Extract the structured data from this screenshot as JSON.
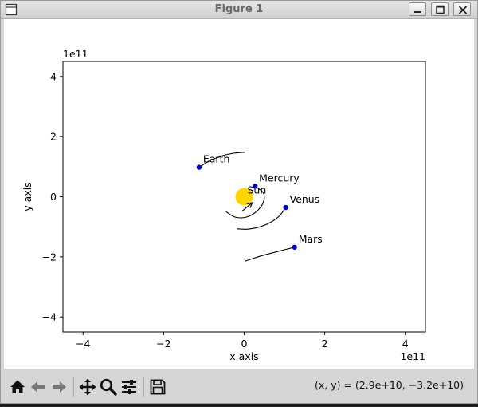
{
  "window": {
    "title": "Figure 1"
  },
  "toolbar": {
    "tools": [
      "home-icon",
      "back-arrow-icon",
      "forward-arrow-icon",
      "pan-move-icon",
      "zoom-magnifier-icon",
      "subplots-sliders-icon",
      "save-floppy-icon"
    ],
    "coordinates": "(x, y) = (2.9e+10, −3.2e+10)"
  },
  "chart_data": {
    "type": "scatter",
    "xlabel": "x axis",
    "ylabel": "y axis",
    "x_offset_text": "1e11",
    "y_offset_text": "1e11",
    "xlim": [
      -4.5,
      4.5
    ],
    "ylim": [
      -4.5,
      4.5
    ],
    "x_ticks": [
      -4,
      -2,
      0,
      2,
      4
    ],
    "y_ticks": [
      -4,
      -2,
      0,
      2,
      4
    ],
    "x_tick_labels": [
      "−4",
      "−2",
      "0",
      "2",
      "4"
    ],
    "y_tick_labels": [
      "−4",
      "−2",
      "0",
      "2",
      "4"
    ],
    "grid": false,
    "sun": {
      "label": "Sun",
      "x": 0.0,
      "y": 0.0,
      "color": "#ffd700"
    },
    "planet_color": "#0000cd",
    "trail_color": "#000000",
    "planets": [
      {
        "label": "Mercury",
        "x": 0.27,
        "y": 0.35,
        "trail": [
          [
            0.27,
            0.35
          ],
          [
            0.48,
            0.12
          ],
          [
            0.47,
            -0.2
          ],
          [
            0.3,
            -0.5
          ],
          [
            0.05,
            -0.68
          ],
          [
            -0.22,
            -0.68
          ],
          [
            -0.45,
            -0.5
          ]
        ]
      },
      {
        "label": "Venus",
        "x": 1.03,
        "y": -0.36,
        "trail": [
          [
            1.03,
            -0.36
          ],
          [
            0.88,
            -0.63
          ],
          [
            0.66,
            -0.85
          ],
          [
            0.4,
            -1.0
          ],
          [
            0.1,
            -1.08
          ],
          [
            -0.18,
            -1.07
          ]
        ]
      },
      {
        "label": "Earth",
        "x": -1.12,
        "y": 0.98,
        "trail": [
          [
            -1.12,
            0.98
          ],
          [
            -0.85,
            1.2
          ],
          [
            -0.55,
            1.36
          ],
          [
            -0.25,
            1.45
          ],
          [
            0.02,
            1.48
          ]
        ]
      },
      {
        "label": "Mars",
        "x": 1.25,
        "y": -1.68,
        "trail": [
          [
            1.25,
            -1.68
          ],
          [
            0.9,
            -1.8
          ],
          [
            0.55,
            -1.92
          ],
          [
            0.25,
            -2.04
          ],
          [
            0.03,
            -2.14
          ]
        ]
      }
    ],
    "velocity_arrow": {
      "from": [
        -0.05,
        -0.48
      ],
      "to": [
        0.2,
        -0.2
      ]
    }
  }
}
